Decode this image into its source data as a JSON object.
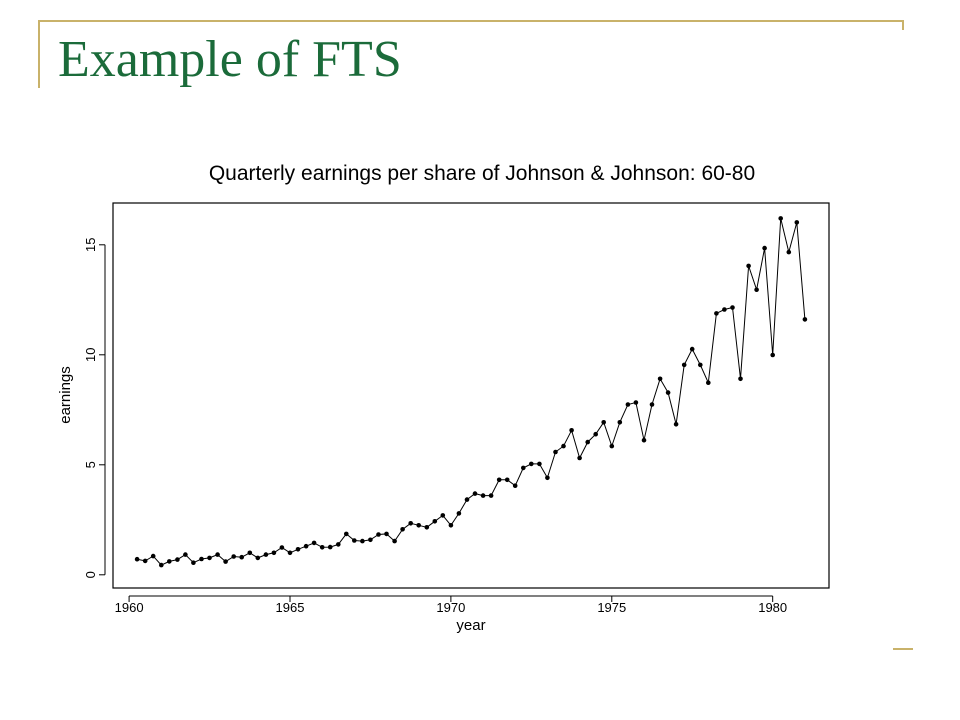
{
  "slide": {
    "title": "Example of FTS"
  },
  "colors": {
    "title": "#1b6b3a",
    "accent_line": "#c9b26a",
    "series": "#000000"
  },
  "chart_data": {
    "type": "line",
    "title": "Quarterly earnings per share of Johnson & Johnson: 60-80",
    "xlabel": "year",
    "ylabel": "earnings",
    "xlim": [
      1959.5,
      1981.75
    ],
    "ylim": [
      -0.6,
      16.9
    ],
    "xticks": [
      1960,
      1965,
      1970,
      1975,
      1980
    ],
    "yticks": [
      0,
      5,
      10,
      15
    ],
    "grid": false,
    "series": [
      {
        "start": 1960.25,
        "step": 0.25,
        "values": [
          0.71,
          0.63,
          0.85,
          0.44,
          0.61,
          0.69,
          0.92,
          0.55,
          0.72,
          0.77,
          0.92,
          0.6,
          0.83,
          0.8,
          1.0,
          0.77,
          0.92,
          1.0,
          1.24,
          1.0,
          1.16,
          1.3,
          1.45,
          1.25,
          1.26,
          1.38,
          1.86,
          1.56,
          1.53,
          1.59,
          1.83,
          1.86,
          1.53,
          2.07,
          2.34,
          2.25,
          2.16,
          2.43,
          2.7,
          2.25,
          2.79,
          3.42,
          3.69,
          3.6,
          3.6,
          4.32,
          4.32,
          4.05,
          4.86,
          5.04,
          5.04,
          4.41,
          5.58,
          5.85,
          6.57,
          5.31,
          6.03,
          6.39,
          6.93,
          5.85,
          6.93,
          7.74,
          7.83,
          6.12,
          7.74,
          8.91,
          8.28,
          6.84,
          9.54,
          10.26,
          9.54,
          8.73,
          11.88,
          12.06,
          12.15,
          8.91,
          14.04,
          12.96,
          14.85,
          9.99,
          16.2,
          14.67,
          16.02,
          11.61
        ]
      }
    ]
  }
}
